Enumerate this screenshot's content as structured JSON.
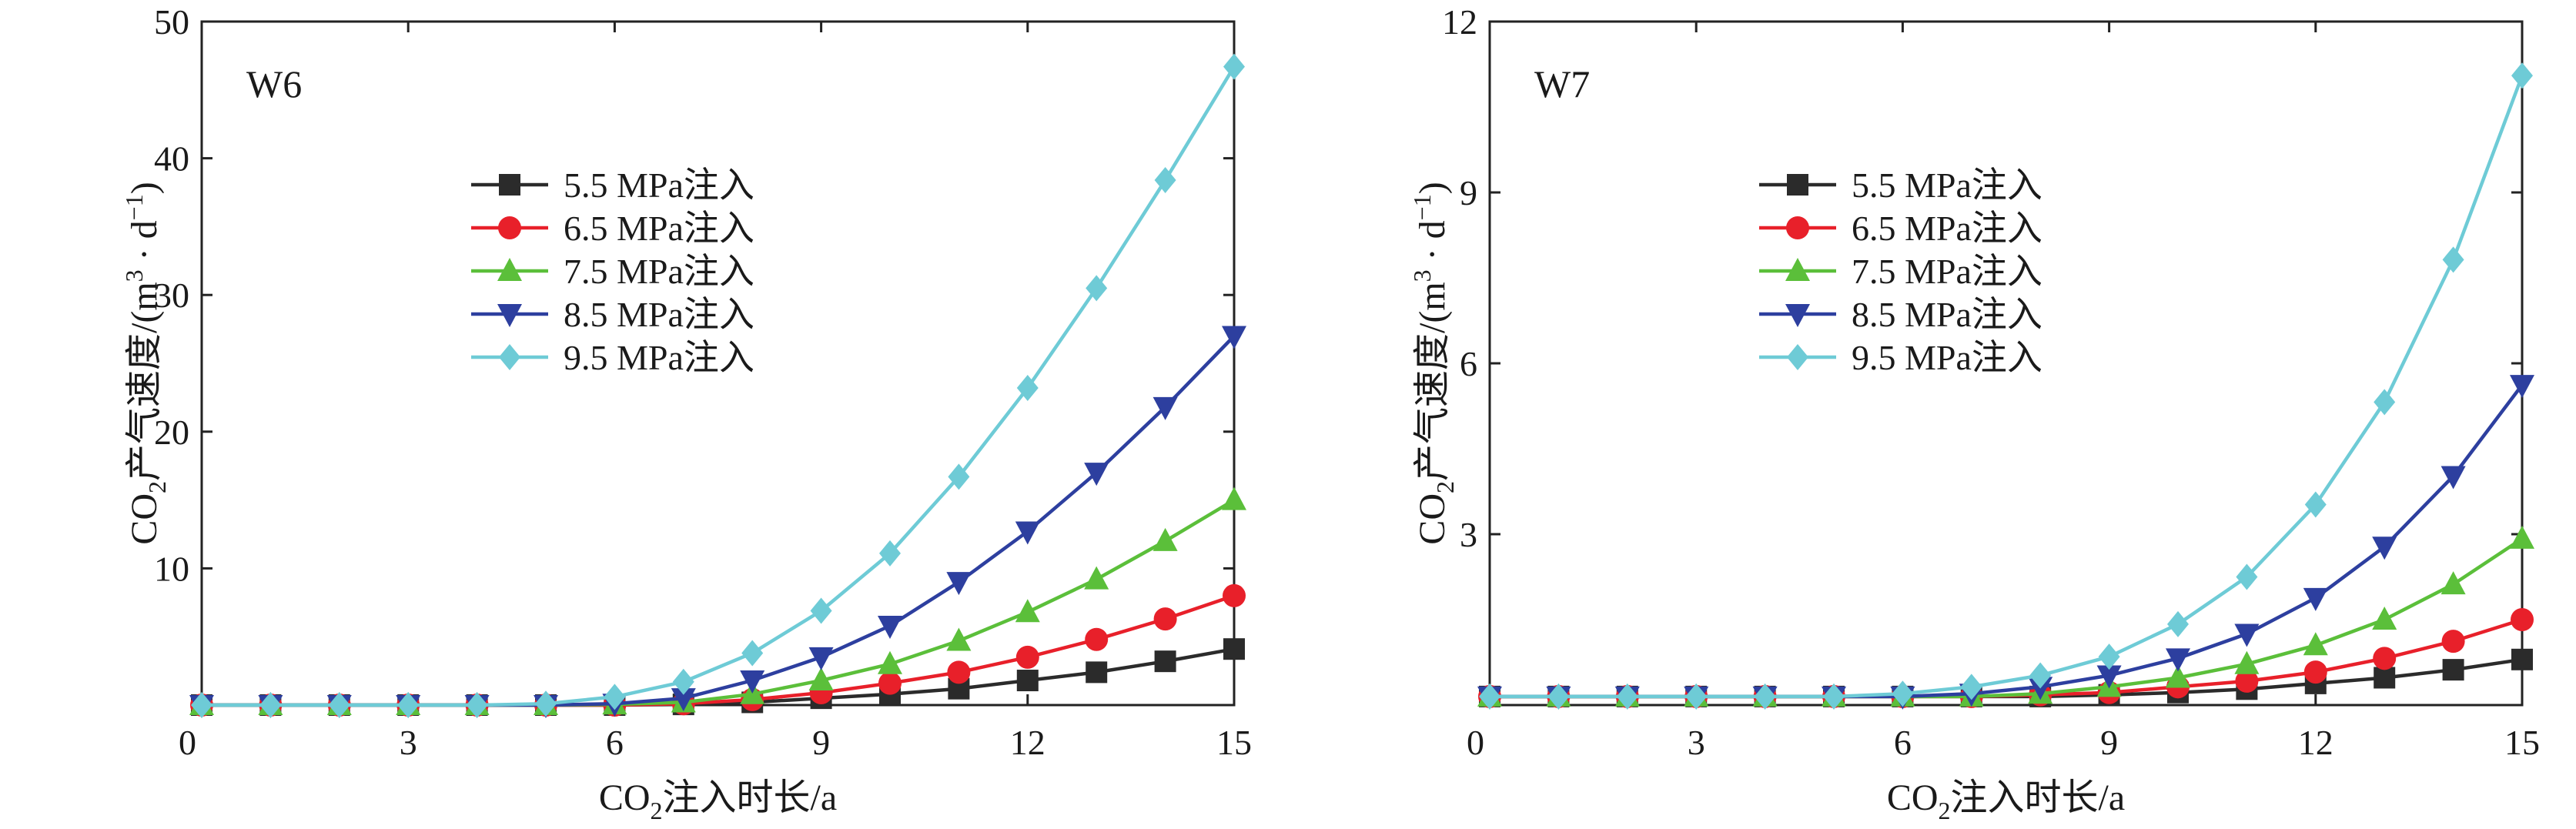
{
  "chart_data": [
    {
      "type": "line",
      "panel_label": "W6",
      "xlabel": {
        "pre": "CO",
        "sub": "2",
        "post": "注入时长/a"
      },
      "ylabel": {
        "pre": "CO",
        "sub": "2",
        "mid": "产气速度/(m",
        "sup1": "3",
        "dot": " · d",
        "sup2": "−1",
        "post": ")"
      },
      "xlim": [
        0,
        15
      ],
      "ylim": [
        0,
        50
      ],
      "xticks": [
        0,
        3,
        6,
        9,
        12,
        15
      ],
      "yticks": [
        10,
        20,
        30,
        40,
        50
      ],
      "ytick_labels": [
        "10",
        "20",
        "30",
        "40",
        "50"
      ],
      "y_origin_label": "0",
      "grid": false,
      "legend_position": "upper-left",
      "x": [
        0,
        1,
        2,
        3,
        4,
        5,
        6,
        7,
        8,
        9,
        10,
        11,
        12,
        13,
        14,
        15
      ],
      "series": [
        {
          "name": "5.5 MPa注入",
          "marker": "square",
          "color": "#2b2b2b",
          "values": [
            0,
            0,
            0,
            0,
            0,
            0,
            0,
            0.05,
            0.2,
            0.5,
            0.8,
            1.2,
            1.8,
            2.4,
            3.2,
            4.1
          ]
        },
        {
          "name": "6.5 MPa注入",
          "marker": "circle",
          "color": "#e8202a",
          "values": [
            0,
            0,
            0,
            0,
            0,
            0,
            0,
            0.1,
            0.4,
            0.9,
            1.6,
            2.4,
            3.5,
            4.8,
            6.3,
            8.0
          ]
        },
        {
          "name": "7.5 MPa注入",
          "marker": "triangle-up",
          "color": "#5bbf3a",
          "values": [
            0,
            0,
            0,
            0,
            0,
            0,
            0.05,
            0.2,
            0.8,
            1.8,
            3.0,
            4.7,
            6.8,
            9.2,
            12.0,
            15.0
          ]
        },
        {
          "name": "8.5 MPa注入",
          "marker": "triangle-down",
          "color": "#2d3f9f",
          "values": [
            0,
            0,
            0,
            0,
            0,
            0,
            0.1,
            0.5,
            1.8,
            3.5,
            5.8,
            9.0,
            12.7,
            17.0,
            21.8,
            27.0
          ]
        },
        {
          "name": "9.5 MPa注入",
          "marker": "diamond",
          "color": "#6ecbd6",
          "values": [
            0,
            0,
            0,
            0,
            0,
            0.1,
            0.6,
            1.7,
            3.8,
            6.9,
            11.1,
            16.7,
            23.2,
            30.5,
            38.4,
            46.7
          ]
        }
      ]
    },
    {
      "type": "line",
      "panel_label": "W7",
      "xlabel": {
        "pre": "CO",
        "sub": "2",
        "post": "注入时长/a"
      },
      "ylabel": {
        "pre": "CO",
        "sub": "2",
        "mid": "产气速度/(m",
        "sup1": "3",
        "dot": " · d",
        "sup2": "−1",
        "post": ")"
      },
      "xlim": [
        0,
        15
      ],
      "ylim": [
        0,
        12
      ],
      "xticks": [
        0,
        3,
        6,
        9,
        12,
        15
      ],
      "yticks": [
        3,
        6,
        9,
        12
      ],
      "ytick_labels": [
        "3",
        "6",
        "9",
        "12"
      ],
      "y_origin_label": "0",
      "grid": false,
      "legend_position": "upper-left",
      "x": [
        0,
        1,
        2,
        3,
        4,
        5,
        6,
        7,
        8,
        9,
        10,
        11,
        12,
        13,
        14,
        15
      ],
      "series": [
        {
          "name": "5.5 MPa注入",
          "marker": "square",
          "color": "#2b2b2b",
          "values": [
            0.15,
            0.15,
            0.15,
            0.15,
            0.15,
            0.15,
            0.15,
            0.15,
            0.15,
            0.18,
            0.22,
            0.28,
            0.38,
            0.48,
            0.62,
            0.8
          ]
        },
        {
          "name": "6.5 MPa注入",
          "marker": "circle",
          "color": "#e8202a",
          "values": [
            0.15,
            0.15,
            0.15,
            0.15,
            0.15,
            0.15,
            0.15,
            0.15,
            0.18,
            0.22,
            0.32,
            0.42,
            0.58,
            0.82,
            1.12,
            1.5
          ]
        },
        {
          "name": "7.5 MPa注入",
          "marker": "triangle-up",
          "color": "#5bbf3a",
          "values": [
            0.15,
            0.15,
            0.15,
            0.15,
            0.15,
            0.15,
            0.15,
            0.15,
            0.2,
            0.32,
            0.48,
            0.72,
            1.05,
            1.5,
            2.12,
            2.92
          ]
        },
        {
          "name": "8.5 MPa注入",
          "marker": "triangle-down",
          "color": "#2d3f9f",
          "values": [
            0.15,
            0.15,
            0.15,
            0.15,
            0.15,
            0.15,
            0.15,
            0.2,
            0.32,
            0.52,
            0.82,
            1.25,
            1.88,
            2.78,
            4.02,
            5.62
          ]
        },
        {
          "name": "9.5 MPa注入",
          "marker": "diamond",
          "color": "#6ecbd6",
          "values": [
            0.15,
            0.15,
            0.15,
            0.15,
            0.15,
            0.15,
            0.2,
            0.32,
            0.52,
            0.85,
            1.42,
            2.25,
            3.52,
            5.32,
            7.82,
            11.05
          ]
        }
      ]
    }
  ]
}
